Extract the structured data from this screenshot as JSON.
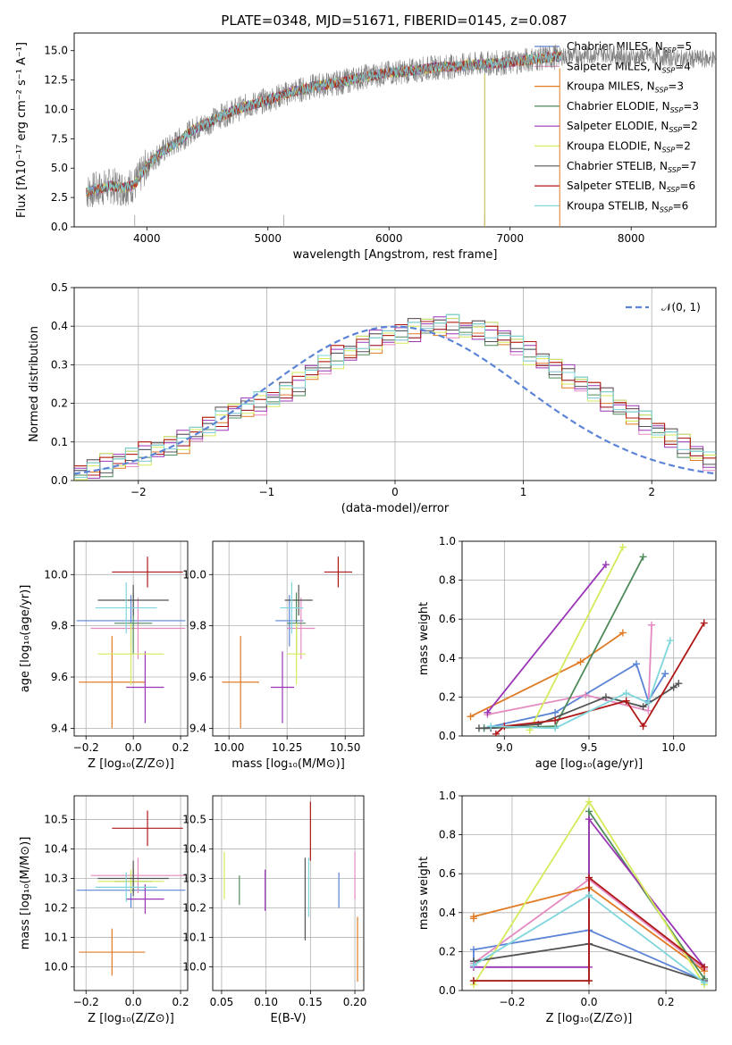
{
  "colors": {
    "chabrier_miles": "#5b84d6",
    "salpeter_miles": "#e58ac1",
    "kroupa_miles": "#e07b25",
    "chabrier_elodie": "#4f8a5a",
    "salpeter_elodie": "#9a35b5",
    "kroupa_elodie": "#d6ea5a",
    "chabrier_stelib": "#555555",
    "salpeter_stelib": "#b01818",
    "kroupa_stelib": "#7fd6dc"
  },
  "chart_data": [
    {
      "panel": "spectrum",
      "type": "line",
      "title": "PLATE=0348, MJD=51671, FIBERID=0145, z=0.087",
      "xlabel": "wavelength [Angstrom, rest frame]",
      "ylabel": "Flux [fλ10⁻¹⁷ erg cm⁻² s⁻¹ A⁻¹]",
      "xlim": [
        3400,
        8700
      ],
      "ylim": [
        0,
        16.5
      ],
      "xticks": [
        4000,
        5000,
        6000,
        7000,
        8000
      ],
      "yticks": [
        0.0,
        2.5,
        5.0,
        7.5,
        10.0,
        12.5,
        15.0
      ],
      "ytick_labels": [
        "0.0",
        "2.5",
        "5.0",
        "7.5",
        "10.0",
        "12.5",
        "15.0"
      ],
      "data_color": "#808080",
      "continuum": {
        "x": [
          3500,
          3600,
          3700,
          3800,
          3900,
          4000,
          4100,
          4200,
          4300,
          4400,
          4500,
          4600,
          4800,
          5000,
          5200,
          5400,
          5600,
          5800,
          6000,
          6200,
          6400,
          6600,
          6800,
          7000,
          7200,
          7400,
          7600,
          7800,
          8000,
          8200,
          8400
        ],
        "y": [
          3.0,
          3.2,
          3.5,
          3.3,
          3.6,
          5.2,
          6.2,
          6.9,
          7.6,
          8.4,
          8.8,
          9.4,
          10.2,
          10.8,
          11.5,
          12.0,
          12.3,
          12.8,
          13.1,
          13.3,
          13.6,
          13.7,
          13.9,
          14.0,
          14.3,
          14.5,
          14.6,
          14.8,
          14.4,
          14.6,
          14.3
        ]
      },
      "model_xmax": 7420,
      "legend": [
        {
          "label": "Chabrier MILES, N",
          "sub": "SSP",
          "tail": "=5",
          "color": "#5b84d6"
        },
        {
          "label": "Salpeter MILES, N",
          "sub": "SSP",
          "tail": "=4",
          "color": "#e58ac1"
        },
        {
          "label": "Kroupa MILES, N",
          "sub": "SSP",
          "tail": "=3",
          "color": "#e07b25"
        },
        {
          "label": "Chabrier ELODIE, N",
          "sub": "SSP",
          "tail": "=3",
          "color": "#4f8a5a"
        },
        {
          "label": "Salpeter ELODIE, N",
          "sub": "SSP",
          "tail": "=2",
          "color": "#9a35b5"
        },
        {
          "label": "Kroupa ELODIE, N",
          "sub": "SSP",
          "tail": "=2",
          "color": "#d6ea5a"
        },
        {
          "label": "Chabrier STELIB, N",
          "sub": "SSP",
          "tail": "=7",
          "color": "#555555"
        },
        {
          "label": "Salpeter STELIB, N",
          "sub": "SSP",
          "tail": "=6",
          "color": "#b01818"
        },
        {
          "label": "Kroupa STELIB, N",
          "sub": "SSP",
          "tail": "=6",
          "color": "#7fd6dc"
        }
      ]
    },
    {
      "panel": "residuals",
      "type": "line",
      "xlabel": "(data-model)/error",
      "ylabel": "Normed distribution",
      "xlim": [
        -2.5,
        2.5
      ],
      "ylim": [
        0,
        0.5
      ],
      "xticks": [
        -2,
        -1,
        0,
        1,
        2
      ],
      "xtick_labels": [
        "−2",
        "−1",
        "0",
        "1",
        "2"
      ],
      "yticks": [
        0.0,
        0.1,
        0.2,
        0.3,
        0.4,
        0.5
      ],
      "ytick_labels": [
        "0.0",
        "0.1",
        "0.2",
        "0.3",
        "0.4",
        "0.5"
      ],
      "legend": [
        {
          "label": "𝒩(0, 1)",
          "color": "#5b84d6",
          "dashed": true
        }
      ],
      "bin_width": 0.1,
      "bin_start": -2.5,
      "base": [
        0.02,
        0.03,
        0.04,
        0.05,
        0.06,
        0.07,
        0.08,
        0.09,
        0.1,
        0.12,
        0.14,
        0.16,
        0.18,
        0.19,
        0.2,
        0.21,
        0.23,
        0.25,
        0.28,
        0.3,
        0.32,
        0.33,
        0.35,
        0.36,
        0.37,
        0.38,
        0.39,
        0.4,
        0.4,
        0.4,
        0.39,
        0.39,
        0.38,
        0.37,
        0.35,
        0.33,
        0.31,
        0.29,
        0.27,
        0.25,
        0.23,
        0.21,
        0.19,
        0.17,
        0.15,
        0.13,
        0.11,
        0.09,
        0.07,
        0.05
      ],
      "series_offsets": [
        [
          0.01,
          -0.02,
          0.03,
          -0.01,
          0.02
        ],
        [
          -0.02,
          0.03,
          -0.01,
          0.02,
          -0.03
        ],
        [
          0.03,
          -0.01,
          0.02,
          -0.03,
          0.01
        ],
        [
          -0.01,
          0.02,
          -0.03,
          0.01,
          0.03
        ],
        [
          0.02,
          -0.03,
          0.01,
          0.03,
          -0.02
        ],
        [
          -0.03,
          0.01,
          0.03,
          -0.02,
          0.02
        ],
        [
          0.01,
          0.03,
          -0.02,
          0.02,
          -0.01
        ],
        [
          0.03,
          -0.02,
          0.02,
          -0.01,
          0.01
        ],
        [
          -0.02,
          0.02,
          -0.01,
          0.01,
          0.03
        ]
      ]
    },
    {
      "panel": "age_vs_Z",
      "type": "scatter",
      "xlabel": "Z [log₁₀(Z/Z⊙)]",
      "ylabel": "age  [log₁₀(age/yr)]",
      "xlim": [
        -0.25,
        0.23
      ],
      "ylim": [
        9.37,
        10.13
      ],
      "xticks": [
        -0.2,
        0.0,
        0.2
      ],
      "xtick_labels": [
        "−0.2",
        "0.0",
        "0.2"
      ],
      "yticks": [
        9.4,
        9.6,
        9.8,
        10.0
      ],
      "ytick_labels": [
        "9.4",
        "9.6",
        "9.8",
        "10.0"
      ],
      "points": [
        {
          "x": -0.01,
          "y": 9.82,
          "xerr": 0.23,
          "yerr": 0.1
        },
        {
          "x": 0.02,
          "y": 9.79,
          "xerr": 0.2,
          "yerr": 0.12
        },
        {
          "x": -0.09,
          "y": 9.58,
          "xerr": 0.14,
          "yerr": 0.18
        },
        {
          "x": 0.0,
          "y": 9.81,
          "xerr": 0.08,
          "yerr": 0.12
        },
        {
          "x": 0.05,
          "y": 9.56,
          "xerr": 0.08,
          "yerr": 0.14
        },
        {
          "x": -0.01,
          "y": 9.69,
          "xerr": 0.14,
          "yerr": 0.12
        },
        {
          "x": 0.0,
          "y": 9.9,
          "xerr": 0.15,
          "yerr": 0.06
        },
        {
          "x": 0.06,
          "y": 10.01,
          "xerr": 0.15,
          "yerr": 0.06
        },
        {
          "x": -0.03,
          "y": 9.87,
          "xerr": 0.13,
          "yerr": 0.1
        }
      ]
    },
    {
      "panel": "age_vs_mass",
      "type": "scatter",
      "xlabel": "mass [log₁₀(M/M⊙)]",
      "xlim": [
        9.93,
        10.58
      ],
      "ylim": [
        9.37,
        10.13
      ],
      "xticks": [
        10.0,
        10.25,
        10.5
      ],
      "xtick_labels": [
        "10.00",
        "10.25",
        "10.50"
      ],
      "yticks": [
        9.4,
        9.6,
        9.8,
        10.0
      ],
      "ytick_labels": [
        "9.4",
        "9.6",
        "9.8",
        "10.0"
      ],
      "points": [
        {
          "x": 10.26,
          "y": 9.82,
          "xerr": 0.06,
          "yerr": 0.1
        },
        {
          "x": 10.31,
          "y": 9.79,
          "xerr": 0.06,
          "yerr": 0.12
        },
        {
          "x": 10.05,
          "y": 9.58,
          "xerr": 0.08,
          "yerr": 0.18
        },
        {
          "x": 10.29,
          "y": 9.81,
          "xerr": 0.04,
          "yerr": 0.12
        },
        {
          "x": 10.23,
          "y": 9.56,
          "xerr": 0.05,
          "yerr": 0.14
        },
        {
          "x": 10.29,
          "y": 9.69,
          "xerr": 0.04,
          "yerr": 0.12
        },
        {
          "x": 10.3,
          "y": 9.9,
          "xerr": 0.06,
          "yerr": 0.06
        },
        {
          "x": 10.47,
          "y": 10.01,
          "xerr": 0.06,
          "yerr": 0.06
        },
        {
          "x": 10.27,
          "y": 9.87,
          "xerr": 0.05,
          "yerr": 0.1
        }
      ]
    },
    {
      "panel": "weight_vs_age",
      "type": "line",
      "xlabel": "age  [log₁₀(age/yr)]",
      "ylabel": "mass weight",
      "xlim": [
        8.75,
        10.25
      ],
      "ylim": [
        0,
        1
      ],
      "xticks": [
        9.0,
        9.5,
        10.0
      ],
      "xtick_labels": [
        "9.0",
        "9.5",
        "10.0"
      ],
      "yticks": [
        0.0,
        0.2,
        0.4,
        0.6,
        0.8,
        1.0
      ],
      "ytick_labels": [
        "0.0",
        "0.2",
        "0.4",
        "0.6",
        "0.8",
        "1.0"
      ],
      "series": [
        {
          "x": [
            8.88,
            9.3,
            9.78,
            9.85,
            9.95
          ],
          "y": [
            0.04,
            0.12,
            0.37,
            0.18,
            0.32
          ]
        },
        {
          "x": [
            8.9,
            9.48,
            9.85,
            9.87
          ],
          "y": [
            0.11,
            0.21,
            0.13,
            0.57
          ]
        },
        {
          "x": [
            8.8,
            9.45,
            9.7
          ],
          "y": [
            0.1,
            0.38,
            0.53
          ]
        },
        {
          "x": [
            8.88,
            9.3,
            9.82
          ],
          "y": [
            0.04,
            0.05,
            0.92
          ]
        },
        {
          "x": [
            8.9,
            9.6
          ],
          "y": [
            0.12,
            0.88
          ]
        },
        {
          "x": [
            9.15,
            9.7
          ],
          "y": [
            0.03,
            0.97
          ]
        },
        {
          "x": [
            8.85,
            8.92,
            9.2,
            9.6,
            9.82,
            10.0,
            10.03
          ],
          "y": [
            0.04,
            0.04,
            0.06,
            0.2,
            0.15,
            0.25,
            0.27
          ]
        },
        {
          "x": [
            8.95,
            9.0,
            9.3,
            9.72,
            9.82,
            10.18
          ],
          "y": [
            0.01,
            0.05,
            0.08,
            0.18,
            0.05,
            0.58
          ]
        },
        {
          "x": [
            8.92,
            9.3,
            9.72,
            9.85,
            9.98
          ],
          "y": [
            0.05,
            0.04,
            0.22,
            0.17,
            0.49
          ]
        }
      ]
    },
    {
      "panel": "mass_vs_Z",
      "type": "scatter",
      "xlabel": "Z [log₁₀(Z/Z⊙)]",
      "ylabel": "mass [log₁₀(M/M⊙)]",
      "xlim": [
        -0.25,
        0.23
      ],
      "ylim": [
        9.92,
        10.58
      ],
      "xticks": [
        -0.2,
        0.0,
        0.2
      ],
      "xtick_labels": [
        "−0.2",
        "0.0",
        "0.2"
      ],
      "yticks": [
        10.0,
        10.1,
        10.2,
        10.3,
        10.4,
        10.5
      ],
      "ytick_labels": [
        "10.0",
        "10.1",
        "10.2",
        "10.3",
        "10.4",
        "10.5"
      ],
      "points": [
        {
          "x": -0.01,
          "y": 10.26,
          "xerr": 0.23,
          "yerr": 0.06
        },
        {
          "x": 0.02,
          "y": 10.31,
          "xerr": 0.2,
          "yerr": 0.06
        },
        {
          "x": -0.09,
          "y": 10.05,
          "xerr": 0.14,
          "yerr": 0.08
        },
        {
          "x": 0.0,
          "y": 10.29,
          "xerr": 0.08,
          "yerr": 0.04
        },
        {
          "x": 0.05,
          "y": 10.23,
          "xerr": 0.08,
          "yerr": 0.05
        },
        {
          "x": -0.01,
          "y": 10.29,
          "xerr": 0.14,
          "yerr": 0.04
        },
        {
          "x": 0.0,
          "y": 10.3,
          "xerr": 0.15,
          "yerr": 0.06
        },
        {
          "x": 0.06,
          "y": 10.47,
          "xerr": 0.15,
          "yerr": 0.06
        },
        {
          "x": -0.03,
          "y": 10.27,
          "xerr": 0.13,
          "yerr": 0.05
        }
      ]
    },
    {
      "panel": "mass_vs_ebv",
      "type": "scatter",
      "xlabel": "E(B-V)",
      "xlim": [
        0.04,
        0.21
      ],
      "ylim": [
        9.92,
        10.58
      ],
      "xticks": [
        0.05,
        0.1,
        0.15,
        0.2
      ],
      "xtick_labels": [
        "0.05",
        "0.10",
        "0.15",
        "0.20"
      ],
      "yticks": [
        10.0,
        10.1,
        10.2,
        10.3,
        10.4,
        10.5
      ],
      "ytick_labels": [
        "10.0",
        "10.1",
        "10.2",
        "10.3",
        "10.4",
        "10.5"
      ],
      "points": [
        {
          "x": 0.182,
          "y": 10.26,
          "xerr": 0,
          "yerr": 0.06
        },
        {
          "x": 0.2,
          "y": 10.31,
          "xerr": 0,
          "yerr": 0.08
        },
        {
          "x": 0.203,
          "y": 10.06,
          "xerr": 0,
          "yerr": 0.11
        },
        {
          "x": 0.07,
          "y": 10.26,
          "xerr": 0,
          "yerr": 0.05
        },
        {
          "x": 0.099,
          "y": 10.26,
          "xerr": 0,
          "yerr": 0.07
        },
        {
          "x": 0.053,
          "y": 10.31,
          "xerr": 0,
          "yerr": 0.08
        },
        {
          "x": 0.144,
          "y": 10.23,
          "xerr": 0,
          "yerr": 0.14
        },
        {
          "x": 0.15,
          "y": 10.46,
          "xerr": 0,
          "yerr": 0.1
        },
        {
          "x": 0.148,
          "y": 10.27,
          "xerr": 0,
          "yerr": 0.1
        }
      ]
    },
    {
      "panel": "weight_vs_Z",
      "type": "line",
      "xlabel": "Z [log₁₀(Z/Z⊙)]",
      "ylabel": "mass weight",
      "xlim": [
        -0.33,
        0.33
      ],
      "ylim": [
        0,
        1
      ],
      "xticks": [
        -0.2,
        0.0,
        0.2
      ],
      "xtick_labels": [
        "−0.2",
        "0.0",
        "0.2"
      ],
      "yticks": [
        0.0,
        0.2,
        0.4,
        0.6,
        0.8,
        1.0
      ],
      "ytick_labels": [
        "0.0",
        "0.2",
        "0.4",
        "0.6",
        "0.8",
        "1.0"
      ],
      "series": [
        {
          "x": [
            -0.3,
            -0.3,
            0.0,
            0.3
          ],
          "y": [
            0.15,
            0.21,
            0.31,
            0.05
          ]
        },
        {
          "x": [
            -0.3,
            0.0,
            0.3
          ],
          "y": [
            0.14,
            0.57,
            0.11
          ]
        },
        {
          "x": [
            -0.3,
            -0.3,
            0.0,
            0.3
          ],
          "y": [
            0.37,
            0.38,
            0.53,
            0.1
          ]
        },
        {
          "x": [
            -0.3,
            0.0,
            0.0,
            0.3
          ],
          "y": [
            0.05,
            0.05,
            0.92,
            0.06
          ]
        },
        {
          "x": [
            -0.3,
            0.0,
            0.0,
            0.3
          ],
          "y": [
            0.12,
            0.12,
            0.88,
            0.12
          ]
        },
        {
          "x": [
            -0.3,
            0.0,
            0.3
          ],
          "y": [
            0.03,
            0.97,
            0.03
          ]
        },
        {
          "x": [
            -0.3,
            0.0,
            0.3
          ],
          "y": [
            0.15,
            0.24,
            0.05
          ]
        },
        {
          "x": [
            -0.3,
            0.0,
            0.0,
            0.3
          ],
          "y": [
            0.05,
            0.05,
            0.58,
            0.12
          ]
        },
        {
          "x": [
            -0.3,
            0.0,
            0.3
          ],
          "y": [
            0.13,
            0.49,
            0.04
          ]
        }
      ]
    }
  ]
}
